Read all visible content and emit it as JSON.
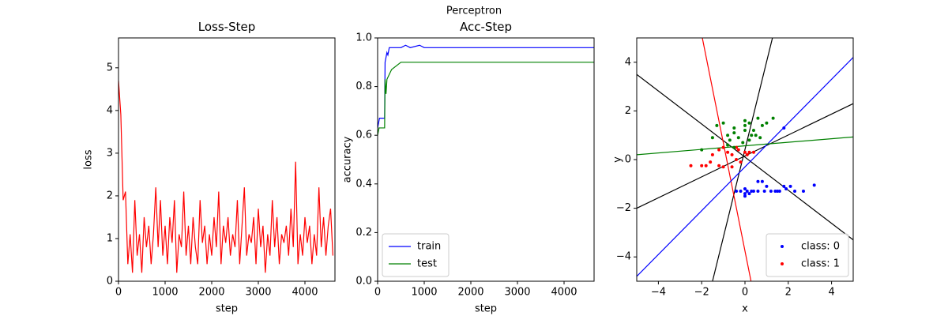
{
  "title": "Perceptron",
  "chart_data": [
    {
      "type": "line",
      "title": "Loss-Step",
      "x_label": "step",
      "y_label": "loss",
      "xlim": [
        0,
        4644
      ],
      "ylim": [
        0,
        5.7
      ],
      "xticks": [
        0,
        1000,
        2000,
        3000,
        4000
      ],
      "yticks": [
        0,
        1,
        2,
        3,
        4,
        5
      ],
      "series": [
        {
          "color": "#ff0000",
          "x": [
            0,
            50,
            100,
            150,
            200,
            250,
            300,
            350,
            400,
            450,
            500,
            550,
            600,
            650,
            700,
            750,
            800,
            850,
            900,
            950,
            1000,
            1050,
            1100,
            1150,
            1200,
            1250,
            1300,
            1350,
            1400,
            1450,
            1500,
            1550,
            1600,
            1650,
            1700,
            1750,
            1800,
            1850,
            1900,
            1950,
            2000,
            2050,
            2100,
            2150,
            2200,
            2250,
            2300,
            2350,
            2400,
            2450,
            2500,
            2550,
            2600,
            2650,
            2700,
            2750,
            2800,
            2850,
            2900,
            2950,
            3000,
            3050,
            3100,
            3150,
            3200,
            3250,
            3300,
            3350,
            3400,
            3450,
            3500,
            3550,
            3600,
            3650,
            3700,
            3750,
            3800,
            3850,
            3900,
            3950,
            4000,
            4050,
            4100,
            4150,
            4200,
            4250,
            4300,
            4350,
            4400,
            4450,
            4500,
            4550,
            4600
          ],
          "values": [
            4.7,
            3.9,
            1.9,
            2.1,
            0.4,
            1.1,
            0.2,
            1.9,
            0.6,
            1.1,
            0.2,
            1.5,
            0.8,
            1.3,
            0.4,
            1.1,
            2.2,
            0.8,
            1.9,
            0.6,
            1.3,
            0.4,
            1.5,
            0.9,
            1.9,
            0.2,
            1.1,
            0.8,
            2.1,
            0.6,
            1.3,
            0.4,
            1.5,
            0.8,
            0.4,
            1.9,
            0.9,
            1.3,
            0.4,
            1.1,
            0.6,
            1.5,
            0.8,
            2.1,
            0.4,
            1.3,
            0.9,
            1.5,
            0.6,
            1.1,
            0.8,
            1.9,
            0.4,
            1.3,
            2.2,
            0.6,
            1.1,
            0.9,
            1.5,
            0.4,
            1.7,
            0.8,
            1.3,
            0.2,
            1.1,
            0.6,
            1.9,
            0.8,
            1.5,
            0.4,
            1.1,
            0.9,
            1.3,
            0.6,
            1.7,
            0.8,
            2.8,
            0.4,
            1.1,
            0.6,
            1.5,
            0.9,
            1.3,
            0.4,
            1.1,
            0.6,
            2.2,
            0.8,
            1.5,
            0.6,
            1.3,
            1.7,
            0.6
          ]
        }
      ]
    },
    {
      "type": "line",
      "title": "Acc-Step",
      "x_label": "step",
      "y_label": "accuracy",
      "xlim": [
        0,
        4644
      ],
      "ylim": [
        0,
        1
      ],
      "xticks": [
        0,
        1000,
        2000,
        3000,
        4000
      ],
      "yticks": [
        {
          "value": 0,
          "label": "0.0"
        },
        0.2,
        0.4,
        0.6,
        0.8,
        {
          "value": 1,
          "label": "1.0"
        }
      ],
      "legend": "lower left",
      "series": [
        {
          "name": "train",
          "color": "#0000ff",
          "x": [
            0,
            40,
            150,
            160,
            200,
            220,
            250,
            300,
            500,
            600,
            700,
            900,
            1000,
            4644
          ],
          "values": [
            0.63,
            0.67,
            0.67,
            0.9,
            0.94,
            0.93,
            0.96,
            0.96,
            0.96,
            0.97,
            0.96,
            0.97,
            0.96,
            0.96
          ]
        },
        {
          "name": "test",
          "color": "#008000",
          "x": [
            0,
            30,
            150,
            160,
            180,
            200,
            300,
            500,
            4644
          ],
          "values": [
            0.6,
            0.63,
            0.63,
            0.83,
            0.77,
            0.83,
            0.87,
            0.9,
            0.9
          ]
        }
      ]
    },
    {
      "type": "scatter",
      "x_label": "x",
      "y_label": "y",
      "xlim": [
        -5,
        5
      ],
      "ylim": [
        -5,
        5
      ],
      "xticks": [
        {
          "value": -4,
          "label": "−4"
        },
        {
          "value": -2,
          "label": "−2"
        },
        0,
        2,
        4
      ],
      "yticks": [
        {
          "value": -4,
          "label": "−4"
        },
        {
          "value": -2,
          "label": "−2"
        },
        0,
        2,
        4
      ],
      "legend": "lower right",
      "series": [
        {
          "name": "class: 0",
          "color": "#0000ff",
          "x": [
            0,
            0,
            0,
            0.2,
            -0.4,
            -0.2,
            0.4,
            0.6,
            0.8,
            1,
            1.2,
            1.4,
            1.6,
            1.8,
            1.9,
            2.1,
            2.3,
            2.7,
            3.2,
            1.8,
            1.5,
            0.9,
            0.3,
            0.1,
            0.6
          ],
          "values": [
            -1.2,
            -1.4,
            -1.5,
            -1.4,
            -1.3,
            -1.3,
            -1.3,
            -1.3,
            -0.9,
            -1.1,
            -1.3,
            -1.3,
            -1.3,
            -1.1,
            -1.2,
            -1.1,
            -1.3,
            -1.3,
            -1.05,
            1.3,
            -1.3,
            -1.3,
            -1.3,
            -1.3,
            -0.9
          ]
        },
        {
          "name": "class: 1",
          "color": "#ff0000",
          "x": [
            -2.5,
            -2,
            -1.8,
            -1.6,
            -1.2,
            -1.5,
            -1.2,
            -1,
            -0.8,
            -0.6,
            -0.4,
            -0.3,
            0,
            0.2,
            0.4,
            -0.2,
            -0.6,
            -1,
            0.1,
            -0.4
          ],
          "values": [
            -0.25,
            -0.25,
            -0.25,
            -0.1,
            -0.25,
            0.2,
            0.4,
            0.5,
            0.3,
            0.2,
            0,
            0.4,
            0.3,
            0.3,
            0.3,
            -0.1,
            -0.3,
            -0.3,
            0.2,
            0.5
          ]
        },
        {
          "color": "#008000",
          "x": [
            -2,
            -1.5,
            -1.3,
            -1,
            -0.8,
            -0.7,
            -0.5,
            -0.5,
            -0.3,
            -0.1,
            0,
            0,
            0.2,
            0.4,
            0.5,
            0.6,
            0.8,
            1,
            1.3,
            0.7,
            -0.5,
            0.2,
            0,
            0.3,
            -0.8
          ],
          "values": [
            0.4,
            0.9,
            1.4,
            1.5,
            1,
            0.8,
            1.3,
            1.1,
            0.9,
            0.7,
            1.2,
            1.4,
            1.5,
            1.2,
            1,
            1.7,
            1.4,
            1.5,
            1.7,
            0.9,
            0.5,
            0.8,
            1.6,
            1,
            0.6
          ]
        }
      ],
      "lines": [
        {
          "color": "#000000",
          "x": [
            -5,
            5
          ],
          "y": [
            3.5,
            -3.3
          ]
        },
        {
          "color": "#000000",
          "x": [
            -5,
            5
          ],
          "y": [
            -2,
            2.3
          ]
        },
        {
          "color": "#000000",
          "x": [
            -1.5,
            1.27
          ],
          "y": [
            -5,
            5
          ]
        },
        {
          "color": "#ff0000",
          "x": [
            -1.97,
            0.28
          ],
          "y": [
            5,
            -5
          ]
        },
        {
          "color": "#0000ff",
          "x": [
            -5,
            5
          ],
          "y": [
            -4.8,
            4.2
          ]
        },
        {
          "color": "#008000",
          "x": [
            -5,
            5
          ],
          "y": [
            0.2,
            0.93
          ]
        }
      ]
    }
  ]
}
